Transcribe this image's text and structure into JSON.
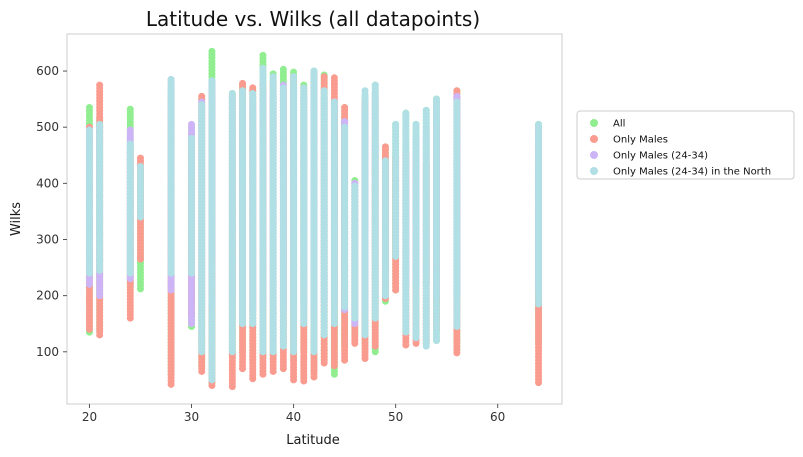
{
  "chart_data": {
    "type": "scatter",
    "title": "Latitude vs. Wilks (all datapoints)",
    "xlabel": "Latitude",
    "ylabel": "Wilks",
    "xlim": [
      17.8,
      66.3
    ],
    "ylim": [
      7,
      666
    ],
    "xticks": [
      20,
      30,
      40,
      50,
      60
    ],
    "yticks": [
      100,
      200,
      300,
      400,
      500,
      600
    ],
    "grid": false,
    "legend_position": "outside-right",
    "series": [
      {
        "name": "All",
        "color": "#90ee90",
        "columns": [
          {
            "x": 20,
            "ymin": 135,
            "ymax": 535
          },
          {
            "x": 21,
            "ymin": 140,
            "ymax": 515
          },
          {
            "x": 24,
            "ymin": 215,
            "ymax": 532
          },
          {
            "x": 25,
            "ymin": 212,
            "ymax": 430
          },
          {
            "x": 28,
            "ymin": 60,
            "ymax": 570
          },
          {
            "x": 30,
            "ymin": 145,
            "ymax": 500
          },
          {
            "x": 31,
            "ymin": 75,
            "ymax": 550
          },
          {
            "x": 32,
            "ymin": 45,
            "ymax": 635
          },
          {
            "x": 34,
            "ymin": 90,
            "ymax": 560
          },
          {
            "x": 35,
            "ymin": 100,
            "ymax": 575
          },
          {
            "x": 36,
            "ymin": 80,
            "ymax": 565
          },
          {
            "x": 37,
            "ymin": 90,
            "ymax": 628
          },
          {
            "x": 38,
            "ymin": 95,
            "ymax": 595
          },
          {
            "x": 39,
            "ymin": 115,
            "ymax": 603
          },
          {
            "x": 40,
            "ymin": 85,
            "ymax": 598
          },
          {
            "x": 41,
            "ymin": 100,
            "ymax": 575
          },
          {
            "x": 42,
            "ymin": 65,
            "ymax": 600
          },
          {
            "x": 43,
            "ymin": 85,
            "ymax": 593
          },
          {
            "x": 44,
            "ymin": 60,
            "ymax": 545
          },
          {
            "x": 45,
            "ymin": 110,
            "ymax": 535
          },
          {
            "x": 46,
            "ymin": 130,
            "ymax": 405
          },
          {
            "x": 47,
            "ymin": 105,
            "ymax": 555
          },
          {
            "x": 48,
            "ymin": 100,
            "ymax": 575
          },
          {
            "x": 49,
            "ymin": 190,
            "ymax": 465
          },
          {
            "x": 50,
            "ymin": 210,
            "ymax": 505
          },
          {
            "x": 51,
            "ymin": 135,
            "ymax": 525
          },
          {
            "x": 52,
            "ymin": 130,
            "ymax": 505
          },
          {
            "x": 53,
            "ymin": 115,
            "ymax": 530
          },
          {
            "x": 54,
            "ymin": 120,
            "ymax": 550
          },
          {
            "x": 56,
            "ymin": 105,
            "ymax": 565
          },
          {
            "x": 64,
            "ymin": 115,
            "ymax": 505
          }
        ]
      },
      {
        "name": "Only Males",
        "color": "#fa9b8f",
        "columns": [
          {
            "x": 20,
            "ymin": 140,
            "ymax": 500
          },
          {
            "x": 21,
            "ymin": 130,
            "ymax": 575
          },
          {
            "x": 24,
            "ymin": 160,
            "ymax": 460
          },
          {
            "x": 25,
            "ymin": 265,
            "ymax": 445
          },
          {
            "x": 28,
            "ymin": 42,
            "ymax": 545
          },
          {
            "x": 30,
            "ymin": 165,
            "ymax": 465
          },
          {
            "x": 31,
            "ymin": 65,
            "ymax": 555
          },
          {
            "x": 32,
            "ymin": 40,
            "ymax": 560
          },
          {
            "x": 34,
            "ymin": 38,
            "ymax": 555
          },
          {
            "x": 35,
            "ymin": 70,
            "ymax": 578
          },
          {
            "x": 36,
            "ymin": 52,
            "ymax": 570
          },
          {
            "x": 37,
            "ymin": 60,
            "ymax": 575
          },
          {
            "x": 38,
            "ymin": 65,
            "ymax": 580
          },
          {
            "x": 39,
            "ymin": 70,
            "ymax": 570
          },
          {
            "x": 40,
            "ymin": 50,
            "ymax": 590
          },
          {
            "x": 41,
            "ymin": 48,
            "ymax": 570
          },
          {
            "x": 42,
            "ymin": 55,
            "ymax": 598
          },
          {
            "x": 43,
            "ymin": 80,
            "ymax": 590
          },
          {
            "x": 44,
            "ymin": 75,
            "ymax": 588
          },
          {
            "x": 45,
            "ymin": 85,
            "ymax": 535
          },
          {
            "x": 46,
            "ymin": 115,
            "ymax": 400
          },
          {
            "x": 47,
            "ymin": 88,
            "ymax": 545
          },
          {
            "x": 48,
            "ymin": 110,
            "ymax": 540
          },
          {
            "x": 49,
            "ymin": 195,
            "ymax": 465
          },
          {
            "x": 50,
            "ymin": 210,
            "ymax": 445
          },
          {
            "x": 51,
            "ymin": 112,
            "ymax": 455
          },
          {
            "x": 52,
            "ymin": 115,
            "ymax": 440
          },
          {
            "x": 53,
            "ymin": 115,
            "ymax": 435
          },
          {
            "x": 54,
            "ymin": 140,
            "ymax": 500
          },
          {
            "x": 56,
            "ymin": 98,
            "ymax": 565
          },
          {
            "x": 64,
            "ymin": 45,
            "ymax": 500
          }
        ]
      },
      {
        "name": "Only Males (24-34)",
        "color": "#cdb4f7",
        "columns": [
          {
            "x": 20,
            "ymin": 220,
            "ymax": 495
          },
          {
            "x": 21,
            "ymin": 200,
            "ymax": 500
          },
          {
            "x": 24,
            "ymin": 230,
            "ymax": 495
          },
          {
            "x": 28,
            "ymin": 210,
            "ymax": 585
          },
          {
            "x": 30,
            "ymin": 150,
            "ymax": 505
          },
          {
            "x": 31,
            "ymin": 180,
            "ymax": 545
          },
          {
            "x": 32,
            "ymin": 180,
            "ymax": 580
          },
          {
            "x": 34,
            "ymin": 195,
            "ymax": 555
          },
          {
            "x": 35,
            "ymin": 160,
            "ymax": 540
          },
          {
            "x": 36,
            "ymin": 175,
            "ymax": 545
          },
          {
            "x": 37,
            "ymin": 185,
            "ymax": 565
          },
          {
            "x": 38,
            "ymin": 180,
            "ymax": 560
          },
          {
            "x": 39,
            "ymin": 180,
            "ymax": 575
          },
          {
            "x": 40,
            "ymin": 175,
            "ymax": 570
          },
          {
            "x": 41,
            "ymin": 180,
            "ymax": 560
          },
          {
            "x": 42,
            "ymin": 175,
            "ymax": 575
          },
          {
            "x": 43,
            "ymin": 190,
            "ymax": 550
          },
          {
            "x": 44,
            "ymin": 195,
            "ymax": 545
          },
          {
            "x": 45,
            "ymin": 175,
            "ymax": 510
          },
          {
            "x": 46,
            "ymin": 150,
            "ymax": 400
          },
          {
            "x": 47,
            "ymin": 175,
            "ymax": 530
          },
          {
            "x": 48,
            "ymin": 195,
            "ymax": 560
          },
          {
            "x": 49,
            "ymin": 200,
            "ymax": 440
          },
          {
            "x": 51,
            "ymin": 220,
            "ymax": 450
          },
          {
            "x": 52,
            "ymin": 220,
            "ymax": 480
          },
          {
            "x": 53,
            "ymin": 220,
            "ymax": 500
          },
          {
            "x": 54,
            "ymin": 200,
            "ymax": 545
          },
          {
            "x": 56,
            "ymin": 200,
            "ymax": 555
          },
          {
            "x": 64,
            "ymin": 210,
            "ymax": 500
          }
        ]
      },
      {
        "name": "Only Males (24-34) in the North",
        "color": "#b0dfe5",
        "columns": [
          {
            "x": 20,
            "ymin": 240,
            "ymax": 495
          },
          {
            "x": 21,
            "ymin": 245,
            "ymax": 505
          },
          {
            "x": 24,
            "ymin": 240,
            "ymax": 470
          },
          {
            "x": 25,
            "ymin": 340,
            "ymax": 430
          },
          {
            "x": 28,
            "ymin": 240,
            "ymax": 585
          },
          {
            "x": 30,
            "ymin": 240,
            "ymax": 480
          },
          {
            "x": 31,
            "ymin": 100,
            "ymax": 540
          },
          {
            "x": 32,
            "ymin": 50,
            "ymax": 583
          },
          {
            "x": 34,
            "ymin": 100,
            "ymax": 560
          },
          {
            "x": 35,
            "ymin": 150,
            "ymax": 565
          },
          {
            "x": 36,
            "ymin": 150,
            "ymax": 560
          },
          {
            "x": 37,
            "ymin": 100,
            "ymax": 605
          },
          {
            "x": 38,
            "ymin": 100,
            "ymax": 590
          },
          {
            "x": 39,
            "ymin": 110,
            "ymax": 570
          },
          {
            "x": 40,
            "ymin": 100,
            "ymax": 590
          },
          {
            "x": 41,
            "ymin": 150,
            "ymax": 570
          },
          {
            "x": 42,
            "ymin": 100,
            "ymax": 600
          },
          {
            "x": 43,
            "ymin": 130,
            "ymax": 565
          },
          {
            "x": 44,
            "ymin": 150,
            "ymax": 545
          },
          {
            "x": 45,
            "ymin": 180,
            "ymax": 500
          },
          {
            "x": 46,
            "ymin": 160,
            "ymax": 395
          },
          {
            "x": 47,
            "ymin": 130,
            "ymax": 565
          },
          {
            "x": 48,
            "ymin": 160,
            "ymax": 575
          },
          {
            "x": 49,
            "ymin": 200,
            "ymax": 440
          },
          {
            "x": 50,
            "ymin": 270,
            "ymax": 505
          },
          {
            "x": 51,
            "ymin": 135,
            "ymax": 525
          },
          {
            "x": 52,
            "ymin": 125,
            "ymax": 505
          },
          {
            "x": 53,
            "ymin": 110,
            "ymax": 530
          },
          {
            "x": 54,
            "ymin": 120,
            "ymax": 550
          },
          {
            "x": 56,
            "ymin": 145,
            "ymax": 545
          },
          {
            "x": 64,
            "ymin": 185,
            "ymax": 505
          }
        ]
      }
    ]
  }
}
